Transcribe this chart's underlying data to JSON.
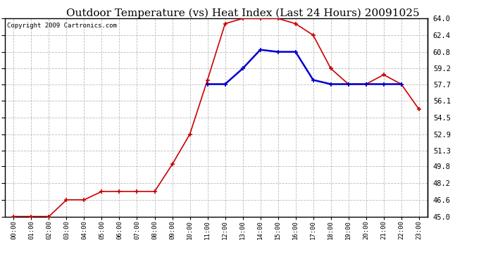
{
  "title": "Outdoor Temperature (vs) Heat Index (Last 24 Hours) 20091025",
  "copyright": "Copyright 2009 Cartronics.com",
  "x_labels": [
    "00:00",
    "01:00",
    "02:00",
    "03:00",
    "04:00",
    "05:00",
    "06:00",
    "07:00",
    "08:00",
    "09:00",
    "10:00",
    "11:00",
    "12:00",
    "13:00",
    "14:00",
    "15:00",
    "16:00",
    "17:00",
    "18:00",
    "19:00",
    "20:00",
    "21:00",
    "22:00",
    "23:00"
  ],
  "red_data": [
    45.0,
    45.0,
    45.0,
    46.6,
    46.6,
    47.4,
    47.4,
    47.4,
    47.4,
    50.0,
    52.9,
    58.1,
    63.5,
    64.0,
    64.0,
    64.0,
    63.5,
    62.4,
    59.2,
    57.7,
    57.7,
    58.6,
    57.7,
    55.3
  ],
  "blue_data": [
    null,
    null,
    null,
    null,
    null,
    null,
    null,
    null,
    null,
    null,
    null,
    57.7,
    57.7,
    59.2,
    61.0,
    60.8,
    60.8,
    58.1,
    57.7,
    57.7,
    57.7,
    57.7,
    57.7,
    null
  ],
  "y_ticks": [
    45.0,
    46.6,
    48.2,
    49.8,
    51.3,
    52.9,
    54.5,
    56.1,
    57.7,
    59.2,
    60.8,
    62.4,
    64.0
  ],
  "y_min": 45.0,
  "y_max": 64.0,
  "red_color": "#cc0000",
  "blue_color": "#0000cc",
  "bg_color": "#ffffff",
  "plot_bg_color": "#ffffff",
  "grid_color": "#bbbbbb",
  "title_fontsize": 11,
  "copyright_fontsize": 6.5
}
